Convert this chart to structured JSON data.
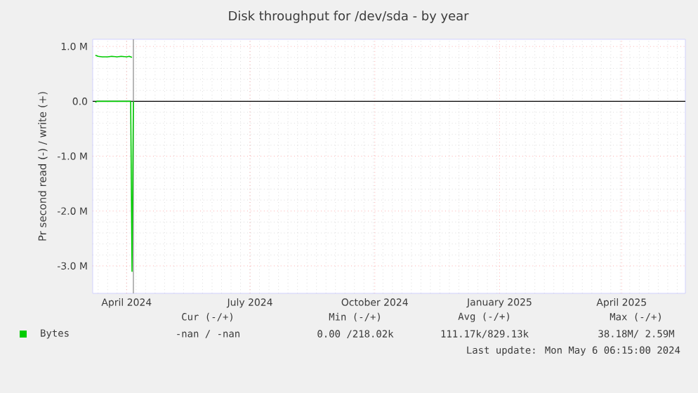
{
  "chart_data": {
    "type": "line",
    "title": "Disk throughput for /dev/sda - by year",
    "ylabel": "Pr second read (-) / write (+)",
    "xlim": [
      "2024-03-07",
      "2025-05-18"
    ],
    "xticks": [
      {
        "value": "2024-04-01",
        "label": "April 2024"
      },
      {
        "value": "2024-07-01",
        "label": "July 2024"
      },
      {
        "value": "2024-10-01",
        "label": "October 2024"
      },
      {
        "value": "2025-01-01",
        "label": "January 2025"
      },
      {
        "value": "2025-04-01",
        "label": "April 2025"
      }
    ],
    "ylim": [
      -3500000,
      1130000
    ],
    "yticks": [
      {
        "value": 1000000,
        "label": "1.0 M"
      },
      {
        "value": 0,
        "label": "0.0"
      },
      {
        "value": -1000000,
        "label": "-1.0 M"
      },
      {
        "value": -2000000,
        "label": "-2.0 M"
      },
      {
        "value": -3000000,
        "label": "-3.0 M"
      }
    ],
    "grid": true,
    "legend": "bottom",
    "series": [
      {
        "name": "Bytes",
        "color": "#00cc00",
        "x": [
          "2024-03-09",
          "2024-03-11",
          "2024-03-14",
          "2024-03-18",
          "2024-03-21",
          "2024-03-25",
          "2024-03-28",
          "2024-04-01",
          "2024-04-03",
          "2024-04-05"
        ],
        "values": [
          840000,
          820000,
          810000,
          810000,
          820000,
          810000,
          820000,
          810000,
          820000,
          800000
        ]
      },
      {
        "color": "#00cc00",
        "x": [
          "2024-03-09",
          "2024-03-10",
          "2024-04-04",
          "2024-04-05",
          "2024-04-06"
        ],
        "values": [
          -20000,
          0,
          0,
          -3100000,
          0
        ]
      }
    ],
    "ref_lines": [
      {
        "axis": "y",
        "value": 0,
        "color": "#000000"
      },
      {
        "axis": "x",
        "value": "2024-04-06",
        "color": "#888888"
      }
    ],
    "annotations": [
      "Cur (-/+)",
      "Min (-/+)",
      "Avg (-/+)",
      "Max (-/+)",
      "-nan /  -nan",
      "0.00 /218.02k",
      "111.17k/829.13k",
      "38.18M/   2.59M",
      "Last update: Mon May  6 06:15:00 2024"
    ]
  }
}
